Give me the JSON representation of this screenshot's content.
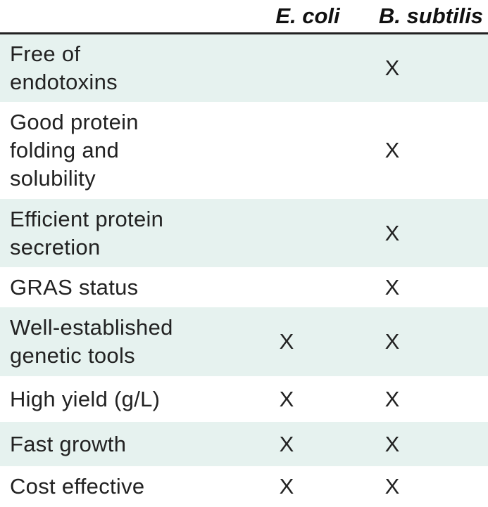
{
  "table": {
    "columns": [
      "E. coli",
      "B. subtilis"
    ],
    "rows": [
      {
        "label": [
          "Free of",
          "endotoxins"
        ],
        "marks": [
          null,
          "X"
        ]
      },
      {
        "label": [
          "Good protein",
          "folding and",
          "solubility"
        ],
        "marks": [
          null,
          "X"
        ]
      },
      {
        "label": [
          "Efficient protein",
          "secretion"
        ],
        "marks": [
          null,
          "X"
        ]
      },
      {
        "label": [
          "GRAS status"
        ],
        "marks": [
          null,
          "X"
        ]
      },
      {
        "label": [
          "Well-established",
          "genetic tools"
        ],
        "marks": [
          "X",
          "X"
        ]
      },
      {
        "label": [
          "High yield (g/L)"
        ],
        "marks": [
          "X",
          "X"
        ]
      },
      {
        "label": [
          "Fast growth"
        ],
        "marks": [
          "X",
          "X"
        ]
      },
      {
        "label": [
          "Cost effective"
        ],
        "marks": [
          "X",
          "X"
        ]
      }
    ]
  }
}
